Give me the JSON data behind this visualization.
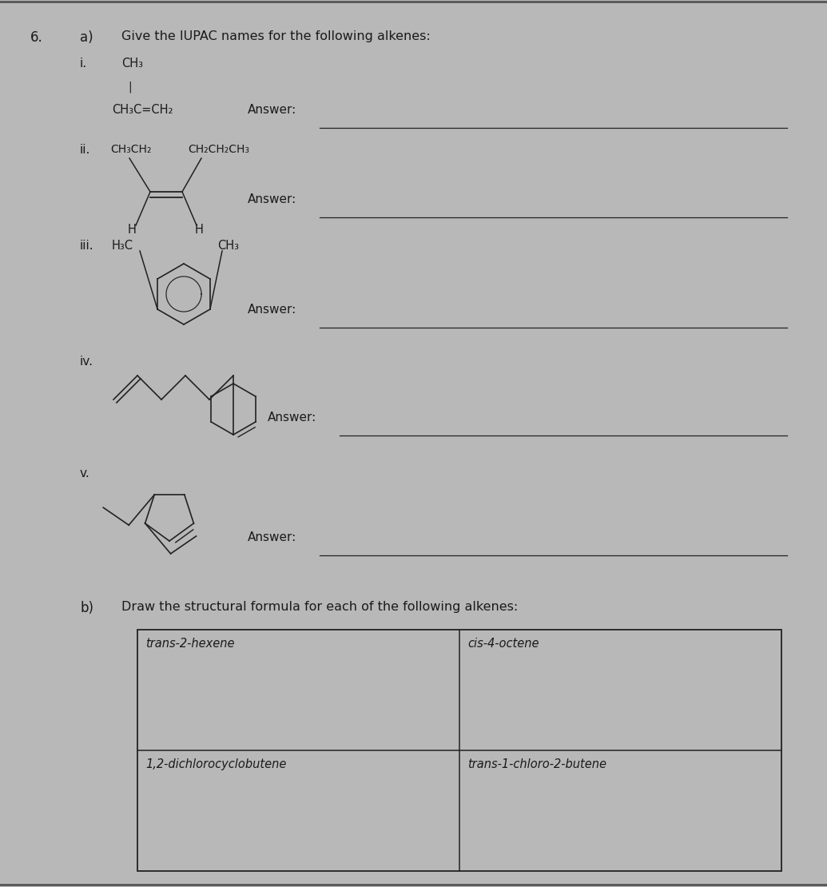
{
  "background_color": "#b8b8b8",
  "text_color": "#1a1a1a",
  "line_color": "#222222",
  "grid_labels": [
    [
      "trans-2-hexene",
      "cis-4-octene"
    ],
    [
      "1,2-dichlorocyclobutene",
      "trans-1-chloro-2-butene"
    ]
  ]
}
